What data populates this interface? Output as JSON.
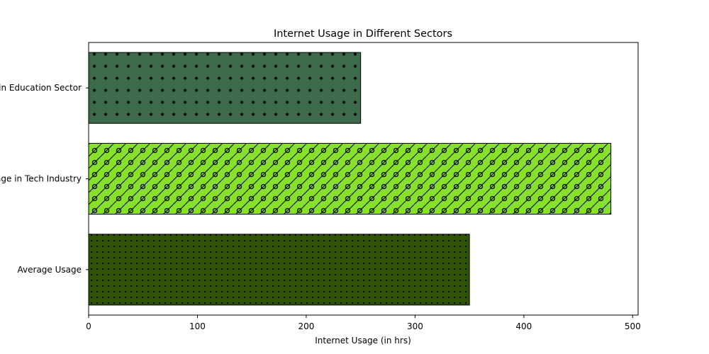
{
  "chart_data": {
    "type": "bar",
    "orientation": "horizontal",
    "title": "Internet Usage in Different Sectors",
    "xlabel": "Internet Usage (in hrs)",
    "ylabel": "",
    "xlim": [
      0,
      505
    ],
    "x_ticks": [
      0,
      100,
      200,
      300,
      400,
      500
    ],
    "grid": false,
    "categories": [
      "Average Usage",
      "Usage in Tech Industry",
      "Usage in Education Sector"
    ],
    "values": [
      350,
      480,
      250
    ],
    "colors": [
      "#2f5405",
      "#86e02c",
      "#3b6b4b"
    ],
    "hatches": [
      "small-dots",
      "diagonal-circles",
      "dots"
    ]
  }
}
